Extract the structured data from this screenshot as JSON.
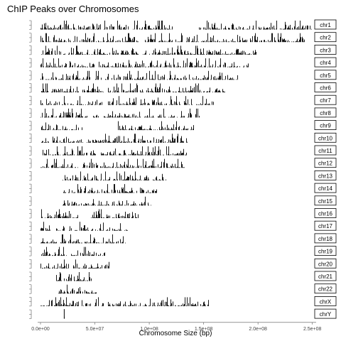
{
  "chart_data": {
    "type": "bar",
    "title": "ChIP Peaks over Chromosomes",
    "xlabel": "Chromosome Size (bp)",
    "ylabel": "",
    "xlim": [
      0,
      260000000
    ],
    "x_ticks": [
      "0.0e+00",
      "5.0e+07",
      "1.0e+08",
      "1.5e+08",
      "2.0e+08",
      "2.5e+08"
    ],
    "x_tick_values": [
      0,
      50000000,
      100000000,
      150000000,
      200000000,
      250000000
    ],
    "grid": false,
    "facet_strip_position": "right",
    "chromosomes": [
      {
        "name": "chr1",
        "length": 249000000,
        "gaps": [
          [
            121000000,
            145000000
          ]
        ]
      },
      {
        "name": "chr2",
        "length": 243000000,
        "gaps": [
          [
            90000000,
            96000000
          ]
        ]
      },
      {
        "name": "chr3",
        "length": 198000000,
        "gaps": [
          [
            90000000,
            94000000
          ]
        ]
      },
      {
        "name": "chr4",
        "length": 191000000,
        "gaps": [
          [
            49000000,
            53000000
          ]
        ]
      },
      {
        "name": "chr5",
        "length": 181000000,
        "gaps": [
          [
            46000000,
            50000000
          ]
        ]
      },
      {
        "name": "chr6",
        "length": 171000000,
        "gaps": [
          [
            58000000,
            62000000
          ]
        ]
      },
      {
        "name": "chr7",
        "length": 159000000,
        "gaps": [
          [
            58000000,
            62000000
          ]
        ]
      },
      {
        "name": "chr8",
        "length": 146000000,
        "gaps": [
          [
            43000000,
            47000000
          ]
        ]
      },
      {
        "name": "chr9",
        "length": 141000000,
        "gaps": [
          [
            38000000,
            71000000
          ]
        ]
      },
      {
        "name": "chr10",
        "length": 135000000,
        "gaps": [
          [
            39000000,
            42000000
          ]
        ]
      },
      {
        "name": "chr11",
        "length": 135000000,
        "gaps": [
          [
            51000000,
            55000000
          ]
        ]
      },
      {
        "name": "chr12",
        "length": 133000000,
        "gaps": [
          [
            34000000,
            38000000
          ]
        ]
      },
      {
        "name": "chr13",
        "length": 115000000,
        "gaps": [
          [
            0,
            19000000
          ]
        ]
      },
      {
        "name": "chr14",
        "length": 107000000,
        "gaps": [
          [
            0,
            19000000
          ]
        ]
      },
      {
        "name": "chr15",
        "length": 102000000,
        "gaps": [
          [
            0,
            20000000
          ]
        ]
      },
      {
        "name": "chr16",
        "length": 90000000,
        "gaps": [
          [
            35000000,
            46000000
          ]
        ]
      },
      {
        "name": "chr17",
        "length": 81000000,
        "gaps": [
          [
            22000000,
            25000000
          ]
        ]
      },
      {
        "name": "chr18",
        "length": 78000000,
        "gaps": [
          [
            15000000,
            18000000
          ]
        ]
      },
      {
        "name": "chr19",
        "length": 59000000,
        "gaps": [
          [
            24000000,
            28000000
          ]
        ]
      },
      {
        "name": "chr20",
        "length": 63000000,
        "gaps": [
          [
            26000000,
            30000000
          ]
        ]
      },
      {
        "name": "chr21",
        "length": 48000000,
        "gaps": [
          [
            0,
            14000000
          ]
        ]
      },
      {
        "name": "chr22",
        "length": 51000000,
        "gaps": [
          [
            0,
            16000000
          ]
        ]
      },
      {
        "name": "chrX",
        "length": 155000000,
        "gaps": [
          [
            58000000,
            62000000
          ]
        ]
      },
      {
        "name": "chrY",
        "length": 59000000,
        "gaps": [
          [
            0,
            21500000
          ],
          [
            22500000,
            59000000
          ]
        ]
      }
    ]
  }
}
